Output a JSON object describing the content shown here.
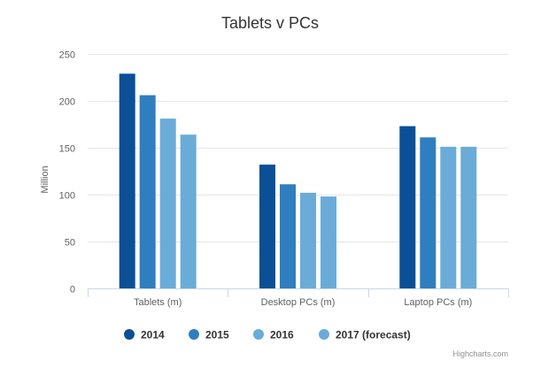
{
  "chart_data": {
    "type": "bar",
    "title": "Tablets v PCs",
    "xlabel": "",
    "ylabel": "Million",
    "ylim": [
      0,
      250
    ],
    "yticks": [
      0,
      50,
      100,
      150,
      200,
      250
    ],
    "grid": true,
    "legend_position": "bottom",
    "categories": [
      "Tablets (m)",
      "Desktop PCs (m)",
      "Laptop PCs (m)"
    ],
    "series": [
      {
        "name": "2014",
        "color": "#0b4f96",
        "values": [
          229,
          132,
          173
        ]
      },
      {
        "name": "2015",
        "color": "#2f7ebf",
        "values": [
          206,
          111,
          161
        ]
      },
      {
        "name": "2016",
        "color": "#6aacd7",
        "values": [
          181,
          102,
          151
        ]
      },
      {
        "name": "2017 (forecast)",
        "color": "#6aacd7",
        "values": [
          164,
          98,
          151
        ]
      }
    ],
    "credits": "Highcharts.com"
  }
}
